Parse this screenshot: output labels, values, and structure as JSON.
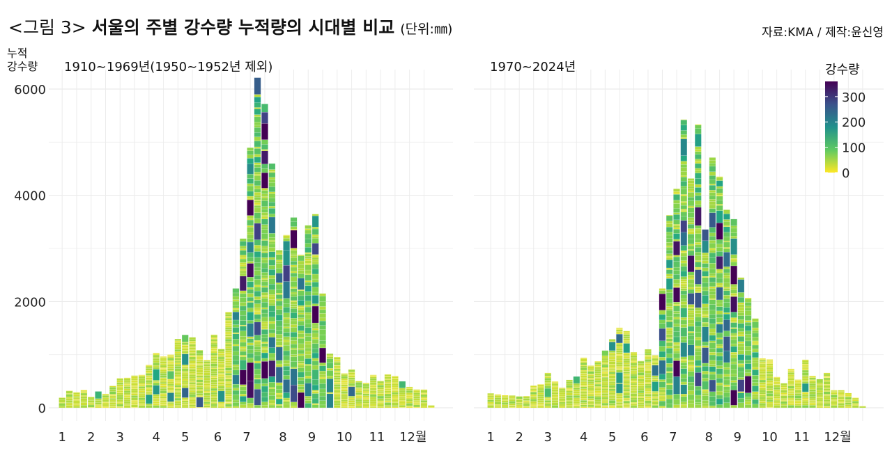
{
  "title": {
    "figure_label": "<그림 3>",
    "main": "서울의 주별 강수량 누적량의 시대별 비교",
    "unit": "(단위:㎜)"
  },
  "source": "자료:KMA / 제작:윤신영",
  "chart_data": [
    {
      "type": "bar",
      "stacked": true,
      "title": "1910~1969년(1950~1952년 제외)",
      "ylabel": [
        "누적",
        "강수량"
      ],
      "ylim": [
        0,
        6200
      ],
      "yticks": [
        0,
        2000,
        4000,
        6000
      ],
      "grid": true,
      "x_unit": "week",
      "month_ticks": [
        {
          "label": "1",
          "week": 1
        },
        {
          "label": "2",
          "week": 5
        },
        {
          "label": "3",
          "week": 9
        },
        {
          "label": "4",
          "week": 14
        },
        {
          "label": "5",
          "week": 18
        },
        {
          "label": "6",
          "week": 22.5
        },
        {
          "label": "7",
          "week": 26.5
        },
        {
          "label": "8",
          "week": 31.5
        },
        {
          "label": "9",
          "week": 35.5
        },
        {
          "label": "10",
          "week": 40
        },
        {
          "label": "11",
          "week": 44.5
        },
        {
          "label": "12월",
          "week": 49.5
        }
      ],
      "weekly_totals": [
        195,
        322,
        294,
        335,
        208,
        308,
        263,
        412,
        557,
        566,
        607,
        620,
        806,
        1033,
        965,
        1001,
        1296,
        1373,
        1327,
        1087,
        897,
        1377,
        1110,
        1803,
        2247,
        3185,
        4897,
        6215,
        5721,
        4598,
        2967,
        3253,
        3583,
        2881,
        3434,
        3647,
        2152,
        1019,
        956,
        648,
        725,
        503,
        467,
        620,
        507,
        630,
        598,
        498,
        394,
        344,
        344,
        45
      ]
    },
    {
      "type": "bar",
      "stacked": true,
      "title": "1970~2024년",
      "ylim": [
        0,
        6200
      ],
      "yticks": [
        0,
        2000,
        4000,
        6000
      ],
      "grid": true,
      "x_unit": "week",
      "month_ticks": [
        {
          "label": "1",
          "week": 1
        },
        {
          "label": "2",
          "week": 5
        },
        {
          "label": "3",
          "week": 9
        },
        {
          "label": "4",
          "week": 14
        },
        {
          "label": "5",
          "week": 18
        },
        {
          "label": "6",
          "week": 22.5
        },
        {
          "label": "7",
          "week": 26.5
        },
        {
          "label": "8",
          "week": 31.5
        },
        {
          "label": "9",
          "week": 35.5
        },
        {
          "label": "10",
          "week": 40
        },
        {
          "label": "11",
          "week": 44.5
        },
        {
          "label": "12월",
          "week": 49.5
        }
      ],
      "weekly_totals": [
        272,
        254,
        236,
        231,
        217,
        222,
        417,
        444,
        657,
        494,
        376,
        525,
        589,
        942,
        793,
        874,
        1078,
        1291,
        1508,
        1445,
        1046,
        883,
        1101,
        988,
        2247,
        3629,
        4122,
        5427,
        4317,
        5336,
        3357,
        4711,
        4353,
        3728,
        3552,
        2451,
        2070,
        1681,
        929,
        911,
        580,
        462,
        734,
        530,
        906,
        602,
        539,
        657,
        331,
        331,
        276,
        190,
        32
      ]
    }
  ],
  "legend": {
    "title": "강수량",
    "type": "colorbar",
    "colormap": "viridis (reversed)",
    "range": [
      0,
      360
    ],
    "ticks": [
      "0",
      "100",
      "200",
      "300"
    ],
    "colors": [
      "#fde725",
      "#5ec962",
      "#21918c",
      "#3b528b",
      "#440154"
    ]
  }
}
